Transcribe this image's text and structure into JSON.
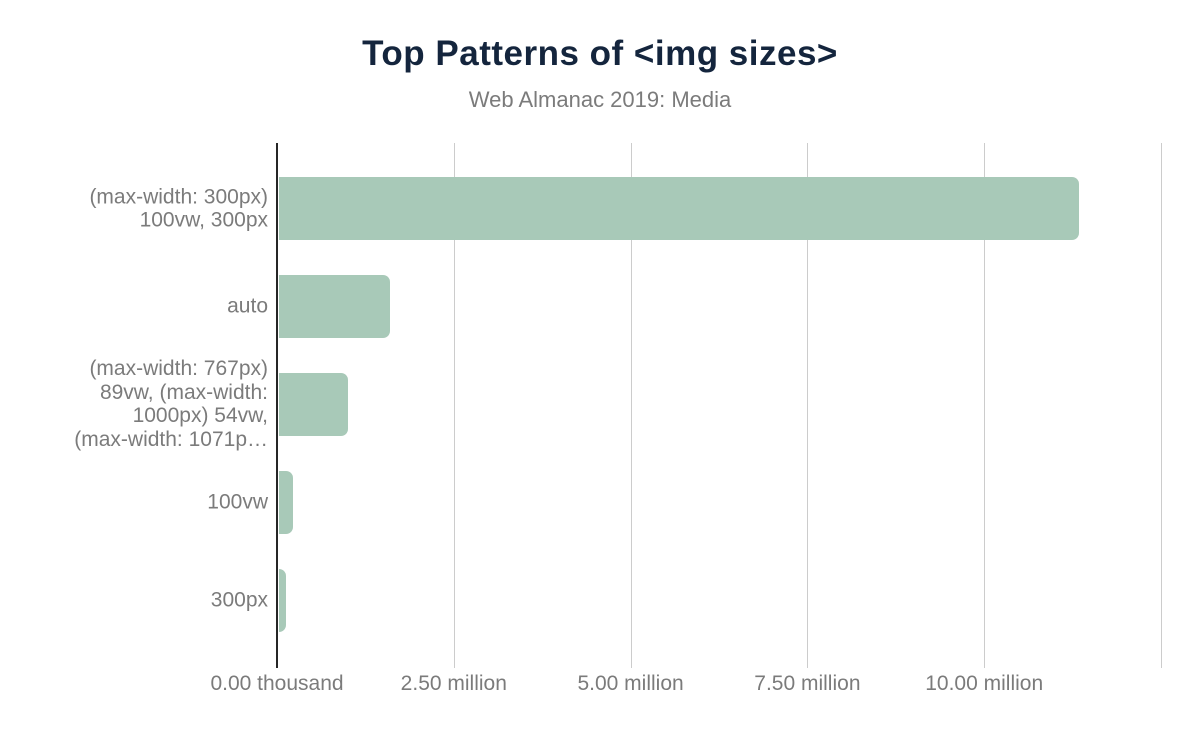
{
  "chart_data": {
    "type": "bar",
    "orientation": "horizontal",
    "title": "Top Patterns of <img sizes>",
    "subtitle": "Web Almanac 2019: Media",
    "categories": [
      "(max-width: 300px) 100vw, 300px",
      "auto",
      "(max-width: 767px) 89vw, (max-width: 1000px) 54vw, (max-width: 1071p…",
      "100vw",
      "300px"
    ],
    "categories_lines": [
      [
        "(max-width: 300px)",
        "100vw, 300px"
      ],
      [
        "auto"
      ],
      [
        "(max-width: 767px)",
        "89vw, (max-width:",
        "1000px) 54vw,",
        "(max-width: 1071p…"
      ],
      [
        "100vw"
      ],
      [
        "300px"
      ]
    ],
    "values": [
      11310000,
      1570000,
      970000,
      200000,
      100000
    ],
    "xlabel": "",
    "ylabel": "",
    "xlim": [
      0,
      12500000
    ],
    "x_ticks": [
      {
        "value": 0,
        "label": "0.00 thousand"
      },
      {
        "value": 2500000,
        "label": "2.50 million"
      },
      {
        "value": 5000000,
        "label": "5.00 million"
      },
      {
        "value": 7500000,
        "label": "7.50 million"
      },
      {
        "value": 10000000,
        "label": "10.00 million"
      }
    ],
    "gridline_values": [
      0,
      2500000,
      5000000,
      7500000,
      10000000,
      12500000
    ],
    "grid": true,
    "legend": "none",
    "colors": {
      "bar": "#a8c9b8",
      "title": "#14253d",
      "muted_text": "#7b7b7b",
      "gridline": "#cccccc",
      "axis": "#262626",
      "background": "#ffffff"
    }
  }
}
